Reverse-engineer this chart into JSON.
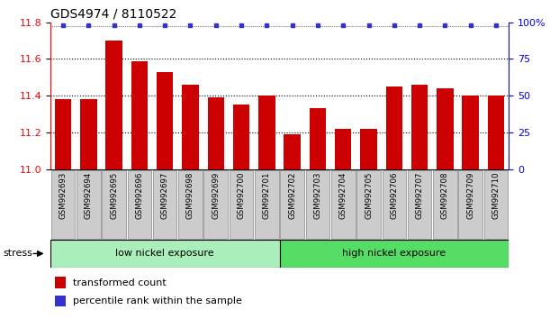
{
  "title": "GDS4974 / 8110522",
  "categories": [
    "GSM992693",
    "GSM992694",
    "GSM992695",
    "GSM992696",
    "GSM992697",
    "GSM992698",
    "GSM992699",
    "GSM992700",
    "GSM992701",
    "GSM992702",
    "GSM992703",
    "GSM992704",
    "GSM992705",
    "GSM992706",
    "GSM992707",
    "GSM992708",
    "GSM992709",
    "GSM992710"
  ],
  "bar_values": [
    11.38,
    11.38,
    11.7,
    11.59,
    11.53,
    11.46,
    11.39,
    11.35,
    11.4,
    11.19,
    11.33,
    11.22,
    11.22,
    11.45,
    11.46,
    11.44,
    11.4,
    11.4
  ],
  "bar_color": "#cc0000",
  "percentile_color": "#3333cc",
  "ylim_left": [
    11.0,
    11.8
  ],
  "ylim_right": [
    0,
    100
  ],
  "yticks_left": [
    11.0,
    11.2,
    11.4,
    11.6,
    11.8
  ],
  "yticks_right": [
    0,
    25,
    50,
    75,
    100
  ],
  "dotted_lines": [
    11.2,
    11.4,
    11.6
  ],
  "background_color": "#ffffff",
  "group1_label": "low nickel exposure",
  "group2_label": "high nickel exposure",
  "group1_color": "#aaeebb",
  "group2_color": "#55dd66",
  "group1_count": 9,
  "stress_label": "stress",
  "legend_bar_label": "transformed count",
  "legend_percentile_label": "percentile rank within the sample",
  "title_fontsize": 10,
  "tick_fontsize": 8,
  "bar_width": 0.65
}
